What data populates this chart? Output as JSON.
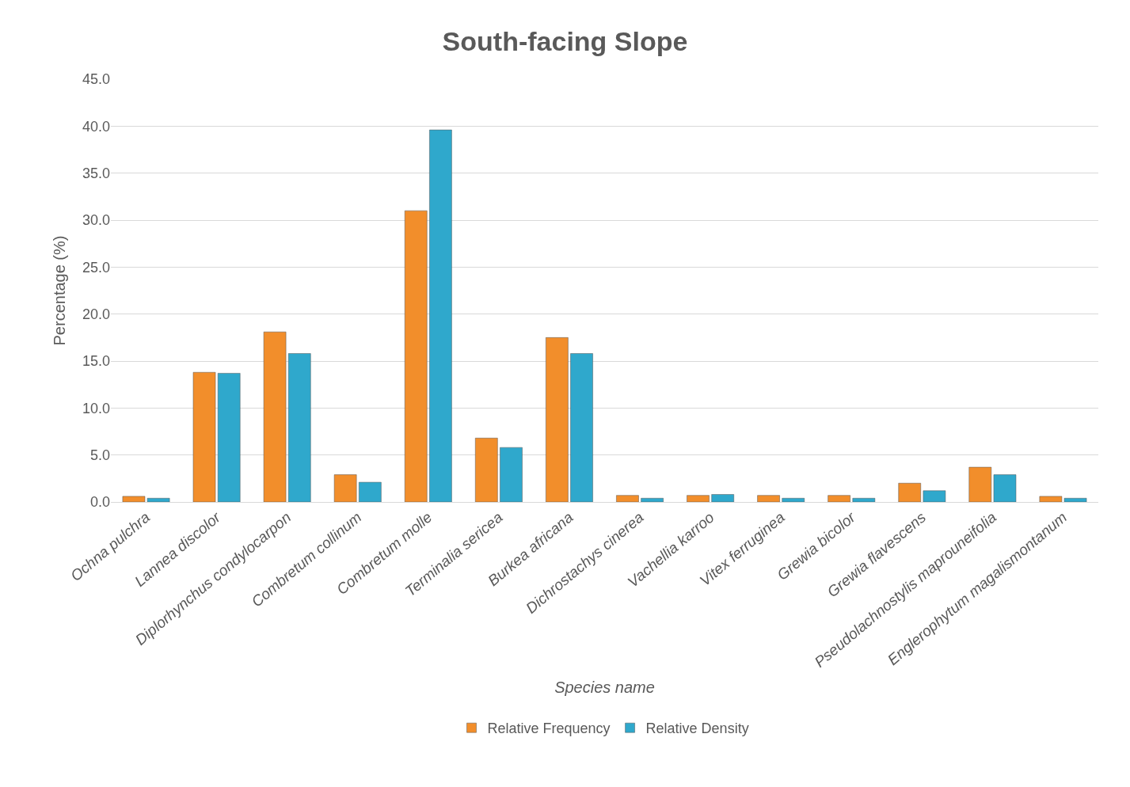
{
  "chart_data": {
    "type": "bar",
    "title": "South-facing Slope",
    "xlabel": "Species name",
    "ylabel": "Percentage (%)",
    "categories": [
      "Ochna pulchra",
      "Lannea discolor",
      "Diplorhynchus condylocarpon",
      "Combretum collinum",
      "Combretum molle",
      "Terminalia sericea",
      "Burkea africana",
      "Dichrostachys cinerea",
      "Vachellia karroo",
      "Vitex ferruginea",
      "Grewia bicolor",
      "Grewia flavescens",
      "Pseudolachnostylis maprouneifolia",
      "Englerophytum magalismontanum"
    ],
    "series": [
      {
        "name": "Relative Frequency",
        "color": "#f28e2b",
        "values": [
          0.6,
          13.8,
          18.1,
          2.9,
          31.0,
          6.8,
          17.5,
          0.7,
          0.7,
          0.7,
          0.7,
          2.0,
          3.7,
          0.6
        ]
      },
      {
        "name": "Relative Density",
        "color": "#2fa8cc",
        "values": [
          0.4,
          13.7,
          15.8,
          2.1,
          39.6,
          5.8,
          15.8,
          0.4,
          0.8,
          0.4,
          0.4,
          1.2,
          2.9,
          0.4
        ]
      }
    ],
    "ylim": [
      0,
      45
    ],
    "yticks": [
      {
        "value": 0,
        "label": "0.0"
      },
      {
        "value": 5,
        "label": "5.0"
      },
      {
        "value": 10,
        "label": "10.0"
      },
      {
        "value": 15,
        "label": "15.0"
      },
      {
        "value": 20,
        "label": "20.0"
      },
      {
        "value": 25,
        "label": "25.0"
      },
      {
        "value": 30,
        "label": "30.0"
      },
      {
        "value": 35,
        "label": "35.0"
      },
      {
        "value": 40,
        "label": "40.0"
      },
      {
        "value": 45,
        "label": "45.0"
      }
    ],
    "grid": "y",
    "legend": "bottom"
  }
}
